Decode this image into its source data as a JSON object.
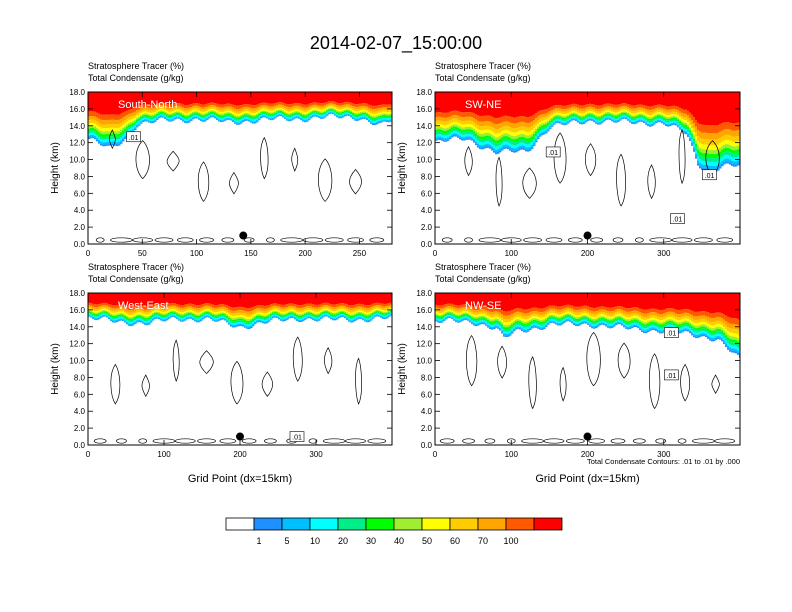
{
  "figure": {
    "title": "2014-02-07_15:00:00",
    "footnote": "Total Condensate Contours: .01 to .01 by .000",
    "colorbar": {
      "levels": [
        "1",
        "5",
        "10",
        "20",
        "30",
        "40",
        "50",
        "60",
        "70",
        "100"
      ],
      "colors": [
        "#ffffff",
        "#1e90ff",
        "#00bfff",
        "#00ffff",
        "#00ee88",
        "#00ff00",
        "#a0ee30",
        "#ffff00",
        "#ffcc00",
        "#ffa500",
        "#ff5a00",
        "#ff0000"
      ]
    }
  },
  "chart_data": [
    {
      "type": "heatmap",
      "name": "South-North",
      "title_left": "Stratosphere Tracer   (%)",
      "title_left2": "Total Condensate   (g/kg)",
      "panel_label": "South-North",
      "xlabel": "",
      "ylabel": "Height (km)",
      "xlim": [
        0,
        280
      ],
      "ylim": [
        0,
        18
      ],
      "xticks": [
        0,
        50,
        100,
        150,
        200,
        250
      ],
      "yticks": [
        "0.0",
        "2.0",
        "4.0",
        "6.0",
        "8.0",
        "10.0",
        "12.0",
        "14.0",
        "16.0",
        "18.0"
      ],
      "marker": {
        "x": 143,
        "y": 1.0
      },
      "contour_labels": [
        {
          "text": ".01",
          "x": 42,
          "y": 12.7
        }
      ],
      "tracer_bottom_profile": [
        [
          0,
          12.5
        ],
        [
          20,
          11.2
        ],
        [
          35,
          12.5
        ],
        [
          45,
          14.2
        ],
        [
          70,
          14.6
        ],
        [
          100,
          14.8
        ],
        [
          130,
          14.4
        ],
        [
          160,
          14.7
        ],
        [
          190,
          14.8
        ],
        [
          220,
          15.0
        ],
        [
          250,
          15.0
        ],
        [
          270,
          14.0
        ],
        [
          280,
          14.6
        ]
      ]
    },
    {
      "type": "heatmap",
      "name": "SW-NE",
      "title_left": "Stratosphere Tracer   (%)",
      "title_left2": "Total Condensate   (g/kg)",
      "panel_label": "SW-NE",
      "xlabel": "",
      "ylabel": "Height (km)",
      "xlim": [
        0,
        400
      ],
      "ylim": [
        0,
        18
      ],
      "xticks": [
        0,
        100,
        200,
        300
      ],
      "yticks": [
        "0.0",
        "2.0",
        "4.0",
        "6.0",
        "8.0",
        "10.0",
        "12.0",
        "14.0",
        "16.0",
        "18.0"
      ],
      "marker": {
        "x": 200,
        "y": 1.0
      },
      "contour_labels": [
        {
          "text": ".01",
          "x": 155,
          "y": 10.9
        },
        {
          "text": ".01",
          "x": 318,
          "y": 3.0
        },
        {
          "text": ".01",
          "x": 360,
          "y": 8.2
        }
      ],
      "tracer_bottom_profile": [
        [
          0,
          12.0
        ],
        [
          40,
          12.5
        ],
        [
          80,
          10.8
        ],
        [
          120,
          11.0
        ],
        [
          150,
          13.8
        ],
        [
          200,
          14.6
        ],
        [
          250,
          14.4
        ],
        [
          300,
          14.3
        ],
        [
          330,
          13.0
        ],
        [
          345,
          9.5
        ],
        [
          360,
          8.5
        ],
        [
          375,
          9.2
        ],
        [
          400,
          9.2
        ]
      ]
    },
    {
      "type": "heatmap",
      "name": "West-East",
      "title_left": "Stratosphere Tracer   (%)",
      "title_left2": "Total Condensate   (g/kg)",
      "panel_label": "West-East",
      "xlabel": "Grid Point (dx=15km)",
      "ylabel": "Height (km)",
      "xlim": [
        0,
        400
      ],
      "ylim": [
        0,
        18
      ],
      "xticks": [
        0,
        100,
        200,
        300
      ],
      "yticks": [
        "0.0",
        "2.0",
        "4.0",
        "6.0",
        "8.0",
        "10.0",
        "12.0",
        "14.0",
        "16.0",
        "18.0"
      ],
      "marker": {
        "x": 200,
        "y": 1.0
      },
      "contour_labels": [
        {
          "text": ".01",
          "x": 275,
          "y": 1.0
        }
      ],
      "tracer_bottom_profile": [
        [
          0,
          15.0
        ],
        [
          40,
          14.6
        ],
        [
          80,
          14.4
        ],
        [
          120,
          15.0
        ],
        [
          160,
          14.8
        ],
        [
          200,
          14.0
        ],
        [
          240,
          14.6
        ],
        [
          280,
          15.0
        ],
        [
          320,
          14.8
        ],
        [
          360,
          14.9
        ],
        [
          400,
          15.0
        ]
      ]
    },
    {
      "type": "heatmap",
      "name": "NW-SE",
      "title_left": "Stratosphere Tracer   (%)",
      "title_left2": "Total Condensate   (g/kg)",
      "panel_label": "NW-SE",
      "xlabel": "Grid Point (dx=15km)",
      "ylabel": "Height (km)",
      "xlim": [
        0,
        400
      ],
      "ylim": [
        0,
        18
      ],
      "xticks": [
        0,
        100,
        200,
        300
      ],
      "yticks": [
        "0.0",
        "2.0",
        "4.0",
        "6.0",
        "8.0",
        "10.0",
        "12.0",
        "14.0",
        "16.0",
        "18.0"
      ],
      "marker": {
        "x": 200,
        "y": 1.0
      },
      "contour_labels": [
        {
          "text": ".01",
          "x": 310,
          "y": 13.3
        },
        {
          "text": ".01",
          "x": 310,
          "y": 8.3
        }
      ],
      "tracer_bottom_profile": [
        [
          0,
          14.6
        ],
        [
          50,
          14.6
        ],
        [
          80,
          13.8
        ],
        [
          90,
          12.6
        ],
        [
          110,
          13.5
        ],
        [
          150,
          14.2
        ],
        [
          200,
          14.3
        ],
        [
          250,
          13.8
        ],
        [
          300,
          13.5
        ],
        [
          340,
          13.0
        ],
        [
          370,
          12.6
        ],
        [
          400,
          10.0
        ]
      ]
    }
  ]
}
